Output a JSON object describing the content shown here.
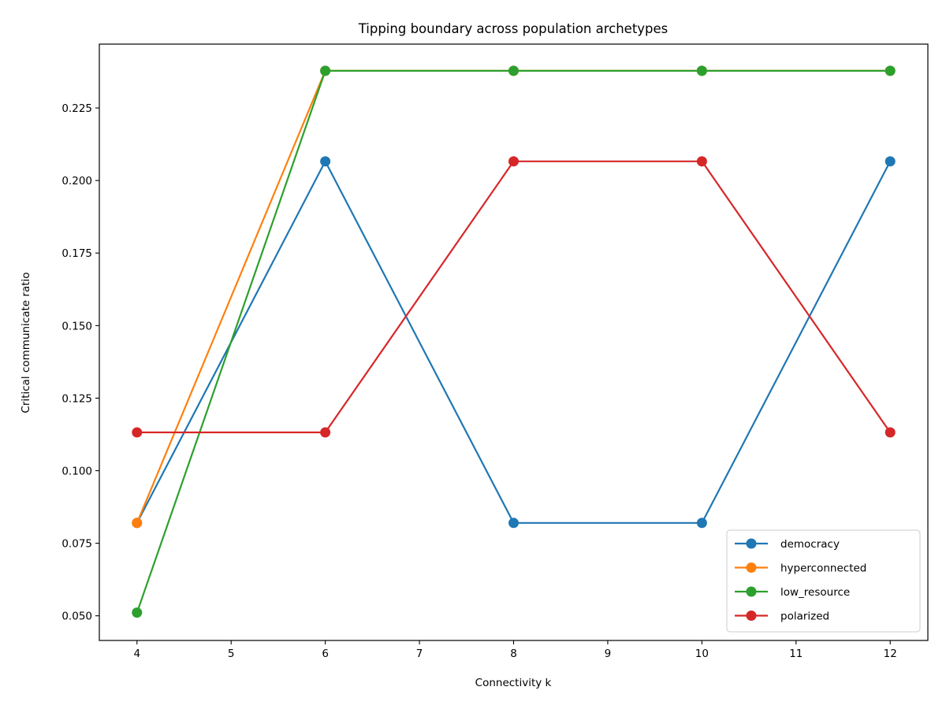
{
  "chart_data": {
    "type": "line",
    "title": "Tipping boundary across population archetypes",
    "xlabel": "Connectivity k",
    "ylabel": "Critical communicate ratio",
    "x": [
      4,
      6,
      8,
      10,
      12
    ],
    "xlim": [
      3.6,
      12.4
    ],
    "ylim": [
      0.0415,
      0.247
    ],
    "xticks": [
      4,
      5,
      6,
      7,
      8,
      9,
      10,
      11,
      12
    ],
    "xtick_labels": [
      "4",
      "5",
      "6",
      "7",
      "8",
      "9",
      "10",
      "11",
      "12"
    ],
    "yticks": [
      0.05,
      0.075,
      0.1,
      0.125,
      0.15,
      0.175,
      0.2,
      0.225
    ],
    "ytick_labels": [
      "0.050",
      "0.075",
      "0.100",
      "0.125",
      "0.150",
      "0.175",
      "0.200",
      "0.225"
    ],
    "grid": false,
    "legend_position": "lower right",
    "series": [
      {
        "name": "democracy",
        "color": "#1f77b4",
        "values": [
          0.082,
          0.2066,
          0.082,
          0.082,
          0.2066
        ]
      },
      {
        "name": "hyperconnected",
        "color": "#ff7f0e",
        "values": [
          0.082,
          0.2378,
          0.2378,
          0.2378,
          0.2378
        ]
      },
      {
        "name": "low_resource",
        "color": "#2ca02c",
        "values": [
          0.0511,
          0.2378,
          0.2378,
          0.2378,
          0.2378
        ]
      },
      {
        "name": "polarized",
        "color": "#d62728",
        "values": [
          0.1132,
          0.1132,
          0.2066,
          0.2066,
          0.1132
        ]
      }
    ]
  }
}
